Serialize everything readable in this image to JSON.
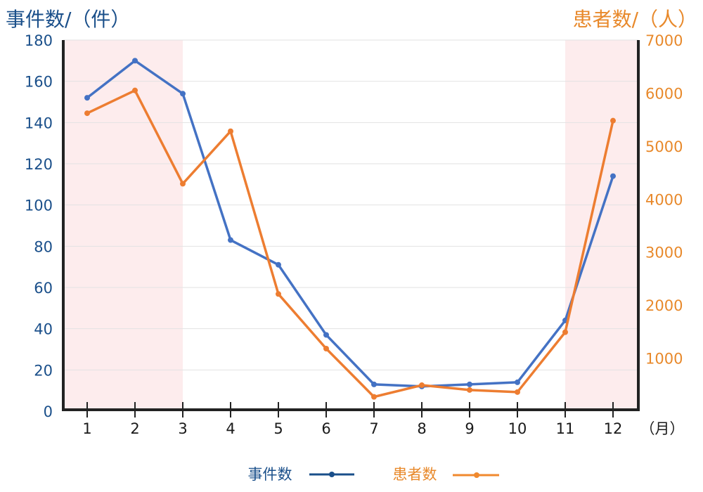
{
  "chart_data": {
    "type": "line",
    "categories": [
      "1",
      "2",
      "3",
      "4",
      "5",
      "6",
      "7",
      "8",
      "9",
      "10",
      "11",
      "12"
    ],
    "x_unit_label": "（月）",
    "left_axis": {
      "title": "事件数/（件）",
      "ylim": [
        0,
        180
      ],
      "ticks": [
        0,
        20,
        40,
        60,
        80,
        100,
        120,
        140,
        160,
        180
      ]
    },
    "right_axis": {
      "title": "患者数/（人）",
      "ylim": [
        0,
        7000
      ],
      "ticks": [
        1000,
        2000,
        3000,
        4000,
        5000,
        6000,
        7000
      ]
    },
    "series": [
      {
        "name": "事件数",
        "axis": "left",
        "color": "#4472c4",
        "legend_color": "#1a4f8a",
        "values": [
          152,
          170,
          154,
          83,
          71,
          37,
          13,
          12,
          13,
          14,
          44,
          114
        ]
      },
      {
        "name": "患者数",
        "axis": "right",
        "color": "#ed7d31",
        "legend_color": "#f0892e",
        "values": [
          5620,
          6050,
          4290,
          5280,
          2210,
          1180,
          270,
          490,
          400,
          360,
          1490,
          5480
        ]
      }
    ],
    "highlight_months": [
      [
        1,
        3
      ],
      [
        11,
        12
      ]
    ],
    "highlight_color": "#fdeced",
    "grid": true,
    "legend_position": "bottom"
  }
}
